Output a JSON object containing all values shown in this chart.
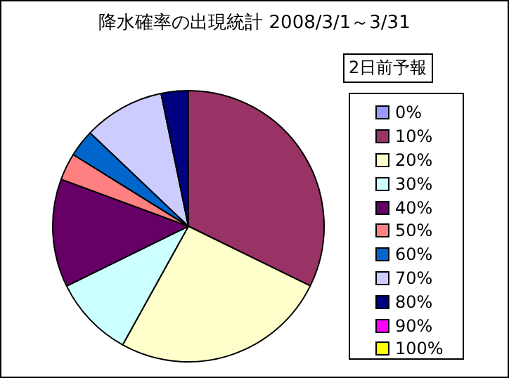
{
  "chart_data": {
    "type": "pie",
    "title": "降水確率の出現統計  2008/3/1～3/31",
    "legend_title": "2日前予報",
    "legend": "right",
    "categories": [
      "0%",
      "10%",
      "20%",
      "30%",
      "40%",
      "50%",
      "60%",
      "70%",
      "80%",
      "90%",
      "100%"
    ],
    "values": [
      0,
      32.25,
      25.8,
      9.68,
      12.9,
      3.23,
      3.23,
      9.68,
      3.23,
      0,
      0
    ],
    "colors": [
      "#9999ff",
      "#993366",
      "#ffffcc",
      "#ccffff",
      "#660066",
      "#ff8080",
      "#0066cc",
      "#ccccff",
      "#000080",
      "#ff00ff",
      "#ffff00"
    ]
  }
}
